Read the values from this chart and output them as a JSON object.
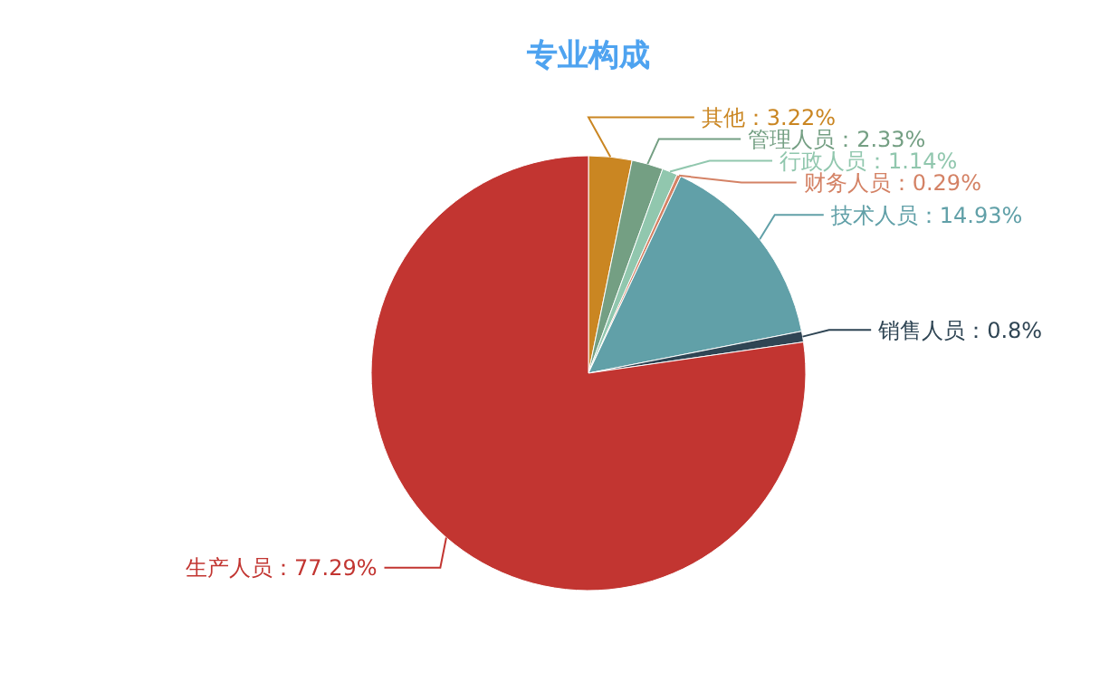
{
  "chart_data": {
    "type": "pie",
    "title": "专业构成",
    "categories": [
      "其他",
      "管理人员",
      "行政人员",
      "财务人员",
      "技术人员",
      "销售人员",
      "生产人员"
    ],
    "values": [
      3.22,
      2.33,
      1.14,
      0.29,
      14.93,
      0.8,
      77.29
    ],
    "value_labels": [
      "3.22%",
      "2.33%",
      "1.14%",
      "0.29%",
      "14.93%",
      "0.8%",
      "77.29%"
    ],
    "colors": [
      "#ca8622",
      "#749f83",
      "#91c7ae",
      "#d48265",
      "#61a0a8",
      "#2f4554",
      "#c23531"
    ]
  }
}
